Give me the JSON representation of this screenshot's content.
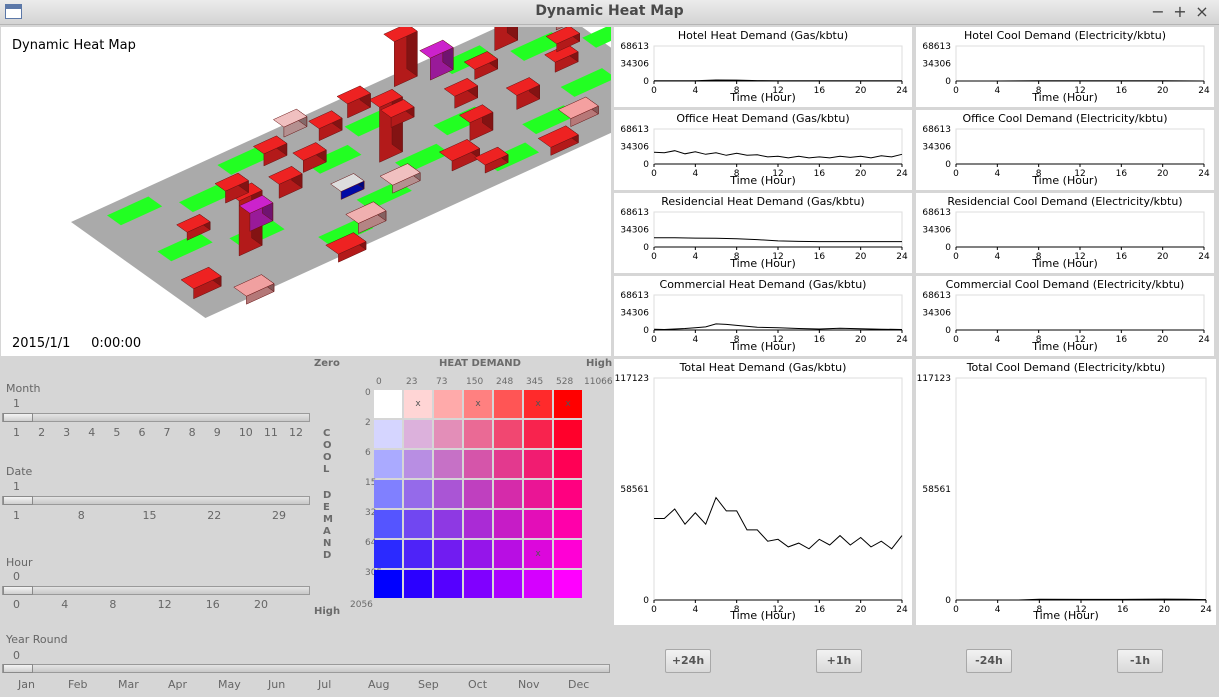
{
  "window": {
    "title": "Dynamic Heat Map",
    "controls": [
      "−",
      "+",
      "×"
    ]
  },
  "view3d": {
    "title": "Dynamic Heat Map",
    "date": "2015/1/1",
    "time": "0:00:00",
    "colors": {
      "street": "#aaaaaa",
      "park": "#22ff22",
      "building": "#ee2222",
      "highlight": "#cc22cc"
    }
  },
  "charts": [
    {
      "title": "Hotel Heat Demand (Gas/kbtu)",
      "xlabel": "Time (Hour)",
      "yticks": [
        "68613",
        "34306",
        "0"
      ],
      "xticks": [
        "0",
        "4",
        "8",
        "12",
        "16",
        "20",
        "24"
      ]
    },
    {
      "title": "Hotel Cool Demand (Electricity/kbtu)",
      "xlabel": "Time (Hour)",
      "yticks": [
        "68613",
        "34306",
        "0"
      ],
      "xticks": [
        "0",
        "4",
        "8",
        "12",
        "16",
        "20",
        "24"
      ]
    },
    {
      "title": "Office Heat Demand (Gas/kbtu)",
      "xlabel": "Time (Hour)",
      "yticks": [
        "68613",
        "34306",
        "0"
      ],
      "xticks": [
        "0",
        "4",
        "8",
        "12",
        "16",
        "20",
        "24"
      ]
    },
    {
      "title": "Office Cool Demand (Electricity/kbtu)",
      "xlabel": "Time (Hour)",
      "yticks": [
        "68613",
        "34306",
        "0"
      ],
      "xticks": [
        "0",
        "4",
        "8",
        "12",
        "16",
        "20",
        "24"
      ]
    },
    {
      "title": "Residencial Heat Demand (Gas/kbtu)",
      "xlabel": "Time (Hour)",
      "yticks": [
        "68613",
        "34306",
        "0"
      ],
      "xticks": [
        "0",
        "4",
        "8",
        "12",
        "16",
        "20",
        "24"
      ]
    },
    {
      "title": "Residencial Cool Demand (Electricity/kbtu)",
      "xlabel": "Time (Hour)",
      "yticks": [
        "68613",
        "34306",
        "0"
      ],
      "xticks": [
        "0",
        "4",
        "8",
        "12",
        "16",
        "20",
        "24"
      ]
    },
    {
      "title": "Commercial Heat Demand (Gas/kbtu)",
      "xlabel": "Time (Hour)",
      "yticks": [
        "68613",
        "34306",
        "0"
      ],
      "xticks": [
        "0",
        "4",
        "8",
        "12",
        "16",
        "20",
        "24"
      ]
    },
    {
      "title": "Commercial Cool Demand (Electricity/kbtu)",
      "xlabel": "Time (Hour)",
      "yticks": [
        "68613",
        "34306",
        "0"
      ],
      "xticks": [
        "0",
        "4",
        "8",
        "12",
        "16",
        "20",
        "24"
      ]
    },
    {
      "title": "Total Heat Demand (Gas/kbtu)",
      "xlabel": "Time (Hour)",
      "yticks": [
        "117123",
        "58561",
        "0"
      ],
      "xticks": [
        "0",
        "4",
        "8",
        "12",
        "16",
        "20",
        "24"
      ]
    },
    {
      "title": "Total Cool Demand (Electricity/kbtu)",
      "xlabel": "Time (Hour)",
      "yticks": [
        "117123",
        "58561",
        "0"
      ],
      "xticks": [
        "0",
        "4",
        "8",
        "12",
        "16",
        "20",
        "24"
      ]
    }
  ],
  "chart_data": [
    {
      "type": "line",
      "title": "Hotel Heat Demand (Gas/kbtu)",
      "xlabel": "Time (Hour)",
      "ylim": [
        0,
        68613
      ],
      "xlim": [
        0,
        24
      ],
      "x": [
        0,
        2,
        4,
        6,
        8,
        10,
        12,
        14,
        16,
        18,
        20,
        22,
        24
      ],
      "values": [
        300,
        300,
        600,
        2000,
        1800,
        700,
        400,
        400,
        300,
        300,
        300,
        300,
        300
      ]
    },
    {
      "type": "line",
      "title": "Hotel Cool Demand (Electricity/kbtu)",
      "xlabel": "Time (Hour)",
      "ylim": [
        0,
        68613
      ],
      "xlim": [
        0,
        24
      ],
      "x": [
        0,
        4,
        8,
        12,
        16,
        20,
        24
      ],
      "values": [
        0,
        0,
        400,
        300,
        300,
        300,
        0
      ]
    },
    {
      "type": "line",
      "title": "Office Heat Demand (Gas/kbtu)",
      "xlabel": "Time (Hour)",
      "ylim": [
        0,
        68613
      ],
      "xlim": [
        0,
        24
      ],
      "x": [
        0,
        1,
        2,
        3,
        4,
        5,
        6,
        7,
        8,
        9,
        10,
        11,
        12,
        13,
        14,
        15,
        16,
        17,
        18,
        19,
        20,
        21,
        22,
        23,
        24
      ],
      "values": [
        23000,
        22000,
        26000,
        20000,
        24000,
        19000,
        22000,
        17000,
        21000,
        17000,
        18000,
        14000,
        15000,
        12000,
        15000,
        12000,
        14000,
        12000,
        15000,
        13000,
        15000,
        12000,
        16000,
        14000,
        19000
      ]
    },
    {
      "type": "line",
      "title": "Office Cool Demand (Electricity/kbtu)",
      "xlabel": "Time (Hour)",
      "ylim": [
        0,
        68613
      ],
      "xlim": [
        0,
        24
      ],
      "x": [
        0,
        24
      ],
      "values": [
        0,
        0
      ]
    },
    {
      "type": "line",
      "title": "Residencial Heat Demand (Gas/kbtu)",
      "xlabel": "Time (Hour)",
      "ylim": [
        0,
        68613
      ],
      "xlim": [
        0,
        24
      ],
      "x": [
        0,
        2,
        4,
        6,
        8,
        10,
        12,
        14,
        16,
        18,
        20,
        22,
        24
      ],
      "values": [
        18000,
        18000,
        17500,
        17000,
        16000,
        14500,
        12000,
        11000,
        10500,
        10500,
        10500,
        10500,
        10500
      ]
    },
    {
      "type": "line",
      "title": "Residencial Cool Demand (Electricity/kbtu)",
      "xlabel": "Time (Hour)",
      "ylim": [
        0,
        68613
      ],
      "xlim": [
        0,
        24
      ],
      "x": [
        0,
        24
      ],
      "values": [
        0,
        0
      ]
    },
    {
      "type": "line",
      "title": "Commercial Heat Demand (Gas/kbtu)",
      "xlabel": "Time (Hour)",
      "ylim": [
        0,
        68613
      ],
      "xlim": [
        0,
        24
      ],
      "x": [
        0,
        1,
        2,
        3,
        4,
        5,
        6,
        7,
        8,
        10,
        12,
        14,
        16,
        18,
        20,
        22,
        24
      ],
      "values": [
        1500,
        900,
        2000,
        3000,
        4500,
        6000,
        12000,
        11000,
        9000,
        5500,
        4500,
        3000,
        2000,
        3500,
        2500,
        1500,
        1000
      ]
    },
    {
      "type": "line",
      "title": "Commercial Cool Demand (Electricity/kbtu)",
      "xlabel": "Time (Hour)",
      "ylim": [
        0,
        68613
      ],
      "xlim": [
        0,
        24
      ],
      "x": [
        0,
        24
      ],
      "values": [
        0,
        0
      ]
    },
    {
      "type": "line",
      "title": "Total Heat Demand (Gas/kbtu)",
      "xlabel": "Time (Hour)",
      "ylim": [
        0,
        117123
      ],
      "xlim": [
        0,
        24
      ],
      "x": [
        0,
        1,
        2,
        3,
        4,
        5,
        6,
        7,
        8,
        9,
        10,
        11,
        12,
        13,
        14,
        15,
        16,
        17,
        18,
        19,
        20,
        21,
        22,
        23,
        24
      ],
      "values": [
        43000,
        43000,
        48000,
        40000,
        46000,
        40000,
        54000,
        47000,
        47000,
        37000,
        37000,
        31000,
        32000,
        28000,
        30000,
        27000,
        32000,
        29000,
        34000,
        29000,
        33000,
        28000,
        31000,
        27000,
        34000
      ]
    },
    {
      "type": "line",
      "title": "Total Cool Demand (Electricity/kbtu)",
      "xlabel": "Time (Hour)",
      "ylim": [
        0,
        117123
      ],
      "xlim": [
        0,
        24
      ],
      "x": [
        0,
        4,
        6,
        8,
        12,
        16,
        20,
        22,
        24
      ],
      "values": [
        0,
        0,
        0,
        400,
        300,
        300,
        500,
        400,
        200
      ]
    }
  ],
  "controls": {
    "month": {
      "label": "Month",
      "value": "1",
      "ticks": [
        "1",
        "2",
        "3",
        "4",
        "5",
        "6",
        "7",
        "8",
        "9",
        "10",
        "11",
        "12"
      ],
      "fraction": 0.0
    },
    "date": {
      "label": "Date",
      "value": "1",
      "ticks": [
        "1",
        "8",
        "15",
        "22",
        "29"
      ],
      "fraction": 0.0
    },
    "hour": {
      "label": "Hour",
      "value": "0",
      "ticks": [
        "0",
        "4",
        "8",
        "12",
        "16",
        "20"
      ],
      "fraction": 0.0
    },
    "yearround": {
      "label": "Year Round",
      "value": "0",
      "ticks": [
        "Jan",
        "Feb",
        "Mar",
        "Apr",
        "May",
        "Jun",
        "Jul",
        "Aug",
        "Sep",
        "Oct",
        "Nov",
        "Dec"
      ],
      "fraction": 0.0
    }
  },
  "legend": {
    "zero": "Zero",
    "heat_label": "HEAT DEMAND",
    "high_top": "High",
    "high_bottom": "High",
    "cool_label": "COOL DEMAND",
    "heat_ticks": [
      "0",
      "23",
      "73",
      "150",
      "248",
      "345",
      "528",
      "11066"
    ],
    "cool_ticks": [
      "0",
      "2",
      "6",
      "15",
      "32",
      "64",
      "305",
      "2056"
    ],
    "marks": [
      [
        0,
        1
      ],
      [
        0,
        3
      ],
      [
        0,
        5
      ],
      [
        0,
        6
      ],
      [
        5,
        5
      ]
    ],
    "mark_symbol": "x"
  },
  "buttons": [
    "+24h",
    "+1h",
    "-24h",
    "-1h"
  ]
}
